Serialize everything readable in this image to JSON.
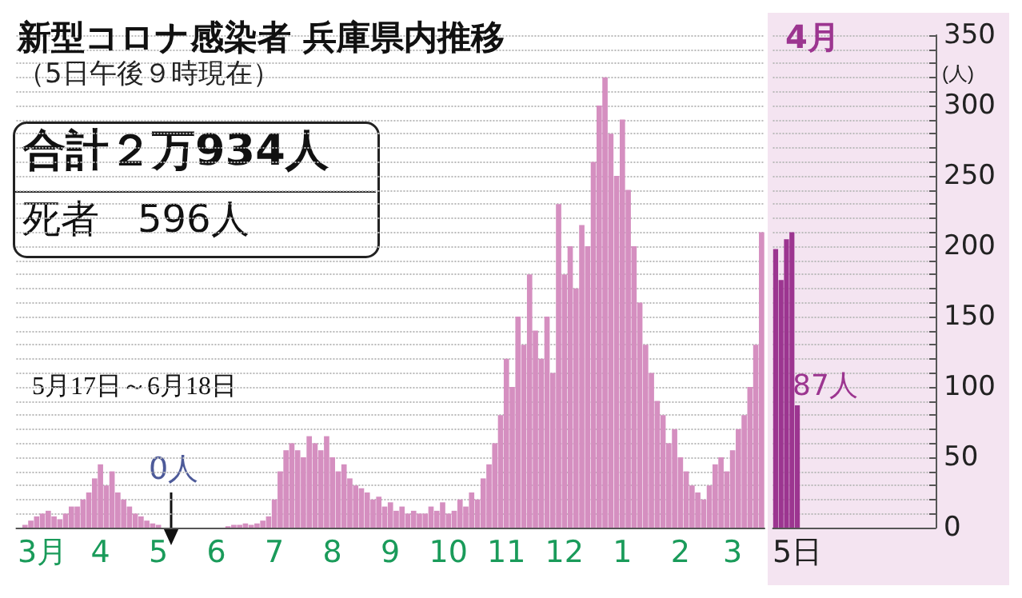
{
  "chart_data": [
    {
      "type": "bar",
      "title": "新型コロナ感染者 兵庫県内推移",
      "subtitle": "（5日午後９時現在）",
      "categories": [
        null,
        null,
        null,
        null,
        "3月",
        null,
        null,
        null,
        null,
        null,
        null,
        null,
        null,
        null,
        "4",
        null,
        null,
        null,
        null,
        null,
        null,
        null,
        null,
        null,
        "5",
        null,
        null,
        null,
        null,
        null,
        null,
        null,
        null,
        null,
        "6",
        null,
        null,
        null,
        null,
        null,
        null,
        null,
        null,
        null,
        "7",
        null,
        null,
        null,
        null,
        null,
        null,
        null,
        null,
        null,
        "8",
        null,
        null,
        null,
        null,
        null,
        null,
        null,
        null,
        null,
        "9",
        null,
        null,
        null,
        null,
        null,
        null,
        null,
        null,
        null,
        "10",
        null,
        null,
        null,
        null,
        null,
        null,
        null,
        null,
        null,
        "11",
        null,
        null,
        null,
        null,
        null,
        null,
        null,
        null,
        null,
        "12",
        null,
        null,
        null,
        null,
        null,
        null,
        null,
        null,
        null,
        "1",
        null,
        null,
        null,
        null,
        null,
        null,
        null,
        null,
        null,
        "2",
        null,
        null,
        null,
        null,
        null,
        null,
        null,
        null,
        "3",
        null,
        null,
        null,
        null,
        null
      ],
      "series": [
        {
          "color": "#d58fc0",
          "values": [
            0,
            2,
            5,
            8,
            10,
            12,
            8,
            6,
            10,
            15,
            15,
            20,
            25,
            35,
            45,
            30,
            40,
            25,
            20,
            15,
            10,
            8,
            5,
            3,
            2,
            0,
            0,
            0,
            0,
            0,
            0,
            0,
            0,
            0,
            0,
            0,
            1,
            2,
            2,
            3,
            2,
            3,
            5,
            8,
            20,
            40,
            55,
            60,
            55,
            50,
            65,
            60,
            55,
            65,
            50,
            40,
            45,
            35,
            30,
            28,
            25,
            20,
            22,
            15,
            18,
            12,
            15,
            10,
            12,
            10,
            10,
            15,
            12,
            18,
            10,
            12,
            20,
            15,
            25,
            20,
            35,
            45,
            60,
            80,
            120,
            100,
            150,
            130,
            180,
            140,
            120,
            150,
            110,
            230,
            180,
            200,
            170,
            215,
            200,
            260,
            300,
            320,
            280,
            250,
            290,
            240,
            200,
            160,
            130,
            110,
            90,
            80,
            60,
            70,
            50,
            40,
            30,
            25,
            20,
            30,
            45,
            50,
            40,
            55,
            70,
            80,
            100,
            130,
            210
          ]
        }
      ],
      "ylim": [
        0,
        350
      ],
      "yticks": [
        0,
        {
          "value": 10,
          "label": null
        },
        {
          "value": 20,
          "label": null
        },
        {
          "value": 30,
          "label": null
        },
        {
          "value": 40,
          "label": null
        },
        50,
        {
          "value": 60,
          "label": null
        },
        {
          "value": 70,
          "label": null
        },
        {
          "value": 80,
          "label": null
        },
        {
          "value": 90,
          "label": null
        },
        100,
        {
          "value": 110,
          "label": null
        },
        {
          "value": 120,
          "label": null
        },
        {
          "value": 130,
          "label": null
        },
        {
          "value": 140,
          "label": null
        },
        150,
        {
          "value": 160,
          "label": null
        },
        {
          "value": 170,
          "label": null
        },
        {
          "value": 180,
          "label": null
        },
        {
          "value": 190,
          "label": null
        },
        200,
        {
          "value": 210,
          "label": null
        },
        {
          "value": 220,
          "label": null
        },
        {
          "value": 230,
          "label": null
        },
        {
          "value": 240,
          "label": null
        },
        250,
        {
          "value": 260,
          "label": null
        },
        {
          "value": 270,
          "label": null
        },
        {
          "value": 280,
          "label": null
        },
        {
          "value": 290,
          "label": null
        },
        300,
        {
          "value": 310,
          "label": null
        },
        {
          "value": 320,
          "label": null
        },
        {
          "value": 330,
          "label": null
        },
        {
          "value": 340,
          "label": null
        },
        350
      ],
      "tick_labels": "x",
      "grid": "y",
      "annotations": [
        "合計２万934人",
        "死者　596人",
        "5月17日～6月18日",
        "0人"
      ]
    },
    {
      "type": "bar",
      "title": "4月",
      "ylabel": "(人)",
      "categories": [
        null,
        null,
        null,
        null,
        "5日",
        null,
        null,
        null,
        null,
        null,
        null,
        null,
        null,
        null,
        null,
        null,
        null,
        null,
        null,
        null,
        null,
        null,
        null,
        null,
        null,
        null,
        null,
        null,
        null,
        null
      ],
      "series": [
        {
          "color": "#9c3590",
          "values": [
            198,
            176,
            205,
            210,
            87,
            null,
            null,
            null,
            null,
            null,
            null,
            null,
            null,
            null,
            null,
            null,
            null,
            null,
            null,
            null,
            null,
            null,
            null,
            null,
            null,
            null,
            null,
            null,
            null,
            null
          ],
          "value_labels": [
            null,
            null,
            null,
            null,
            "87人",
            null,
            null,
            null,
            null,
            null,
            null,
            null,
            null,
            null,
            null,
            null,
            null,
            null,
            null,
            null,
            null,
            null,
            null,
            null,
            null,
            null,
            null,
            null,
            null,
            null
          ]
        }
      ],
      "ylim": [
        0,
        350
      ],
      "yticks": [
        0,
        {
          "value": 10,
          "label": null
        },
        {
          "value": 20,
          "label": null
        },
        {
          "value": 30,
          "label": null
        },
        {
          "value": 40,
          "label": null
        },
        50,
        {
          "value": 60,
          "label": null
        },
        {
          "value": 70,
          "label": null
        },
        {
          "value": 80,
          "label": null
        },
        {
          "value": 90,
          "label": null
        },
        100,
        {
          "value": 110,
          "label": null
        },
        {
          "value": 120,
          "label": null
        },
        {
          "value": 130,
          "label": null
        },
        {
          "value": 140,
          "label": null
        },
        150,
        {
          "value": 160,
          "label": null
        },
        {
          "value": 170,
          "label": null
        },
        {
          "value": 180,
          "label": null
        },
        {
          "value": 190,
          "label": null
        },
        200,
        {
          "value": 210,
          "label": null
        },
        {
          "value": 220,
          "label": null
        },
        {
          "value": 230,
          "label": null
        },
        {
          "value": 240,
          "label": null
        },
        250,
        {
          "value": 260,
          "label": null
        },
        {
          "value": 270,
          "label": null
        },
        {
          "value": 280,
          "label": null
        },
        {
          "value": 290,
          "label": null
        },
        300,
        {
          "value": 310,
          "label": null
        },
        {
          "value": 320,
          "label": null
        },
        {
          "value": 330,
          "label": null
        },
        {
          "value": 340,
          "label": null
        },
        350
      ],
      "grid": "y"
    }
  ]
}
